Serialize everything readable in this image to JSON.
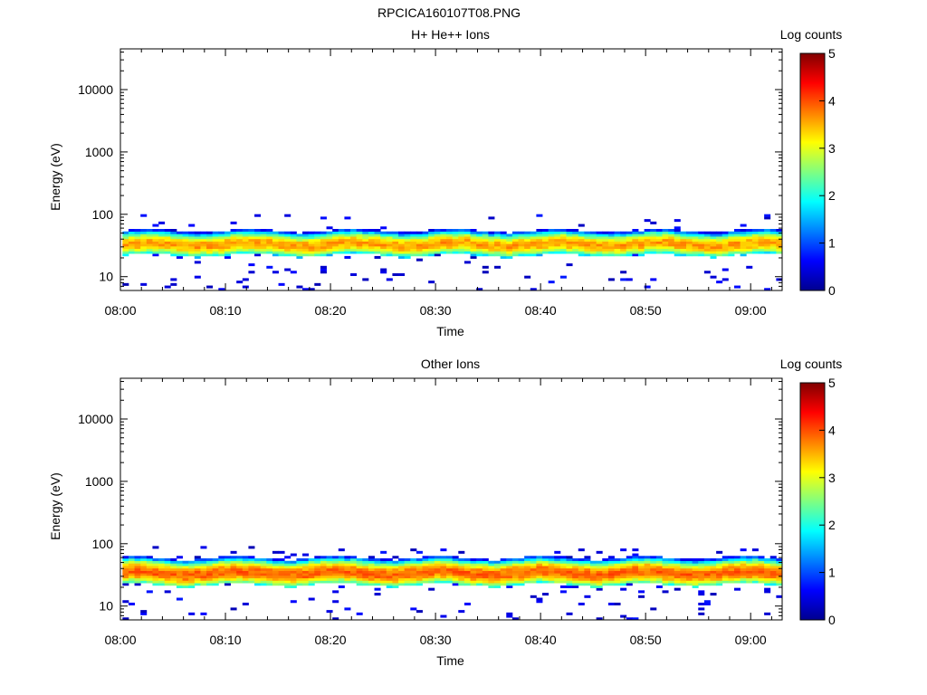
{
  "page_title": "RPCICA160107T08.PNG",
  "colorbar_ticks": [
    "0",
    "1",
    "2",
    "3",
    "4",
    "5"
  ],
  "chart_data": [
    {
      "type": "heatmap",
      "title": "H+ He++ Ions",
      "xlabel": "Time",
      "ylabel": "Energy (eV)",
      "colorbar_label": "Log counts",
      "colorbar_range": [
        0,
        5
      ],
      "y_scale": "log",
      "ylim": [
        6,
        45000
      ],
      "xlim": [
        "08:00",
        "09:03"
      ],
      "x_ticks": [
        "08:00",
        "08:10",
        "08:20",
        "08:30",
        "08:40",
        "08:50",
        "09:00"
      ],
      "y_ticks": [
        "10",
        "100",
        "1000",
        "10000"
      ],
      "band": {
        "energy_low_eV": 22,
        "energy_high_eV": 55,
        "peak_energy_eV": 33,
        "peak_log_counts": 3.6
      },
      "sparse_counts_energy_range_eV": [
        6,
        100
      ]
    },
    {
      "type": "heatmap",
      "title": "Other Ions",
      "xlabel": "Time",
      "ylabel": "Energy (eV)",
      "colorbar_label": "Log counts",
      "colorbar_range": [
        0,
        5
      ],
      "y_scale": "log",
      "ylim": [
        6,
        45000
      ],
      "xlim": [
        "08:00",
        "09:03"
      ],
      "x_ticks": [
        "08:00",
        "08:10",
        "08:20",
        "08:30",
        "08:40",
        "08:50",
        "09:00"
      ],
      "y_ticks": [
        "10",
        "100",
        "1000",
        "10000"
      ],
      "band": {
        "energy_low_eV": 22,
        "energy_high_eV": 60,
        "peak_energy_eV": 34,
        "peak_log_counts": 3.7
      },
      "sparse_counts_energy_range_eV": [
        6,
        90
      ]
    }
  ]
}
